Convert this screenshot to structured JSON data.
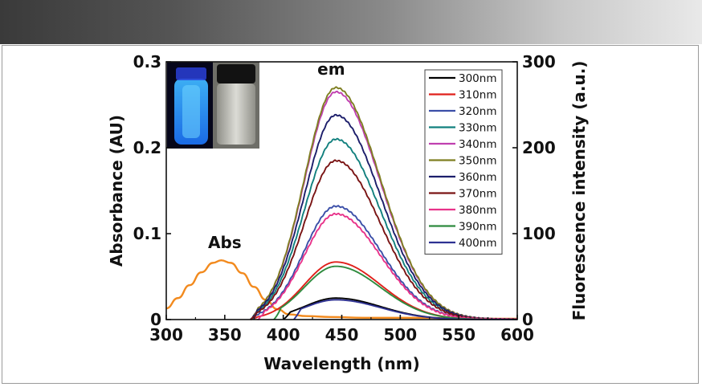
{
  "chart_data": {
    "type": "line",
    "title": "",
    "xlabel": "Wavelength (nm)",
    "ylabel_left": "Absorbance (AU)",
    "ylabel_right": "Fluorescence intensity (a.u.)",
    "xlim": [
      300,
      600
    ],
    "ylim_left": [
      0,
      0.3
    ],
    "ylim_right": [
      0,
      300
    ],
    "x_ticks": [
      "300",
      "350",
      "400",
      "450",
      "500",
      "550",
      "600"
    ],
    "y_left_ticks": [
      "0",
      "0.1",
      "0.2",
      "0.3"
    ],
    "y_right_ticks": [
      "0",
      "100",
      "200",
      "300"
    ],
    "grid": false,
    "legend_position": "top-right",
    "annotations": [
      {
        "text": "Abs",
        "x": 350,
        "y": 0.083
      },
      {
        "text": "em",
        "x": 441,
        "y": 0.285
      }
    ],
    "absorbance": {
      "name": "Abs",
      "axis": "left",
      "color": "#F28A1E",
      "x": [
        300,
        310,
        320,
        330,
        340,
        347,
        355,
        365,
        375,
        385,
        395,
        405,
        420,
        440,
        470,
        520,
        560,
        600
      ],
      "values": [
        0.013,
        0.025,
        0.04,
        0.055,
        0.066,
        0.069,
        0.066,
        0.054,
        0.038,
        0.023,
        0.012,
        0.006,
        0.004,
        0.003,
        0.002,
        0.002,
        0.001,
        0.001
      ]
    },
    "emission_peak_nm": 445,
    "emission_series": [
      {
        "name": "300nm",
        "color": "#000000",
        "peak": 25,
        "start": 400
      },
      {
        "name": "310nm",
        "color": "#E0201B",
        "peak": 67,
        "start": 372
      },
      {
        "name": "320nm",
        "color": "#3B4FA8",
        "peak": 132,
        "start": 372
      },
      {
        "name": "330nm",
        "color": "#12807E",
        "peak": 210,
        "start": 372
      },
      {
        "name": "340nm",
        "color": "#C040B0",
        "peak": 265,
        "start": 372
      },
      {
        "name": "350nm",
        "color": "#7F7F22",
        "peak": 270,
        "start": 372
      },
      {
        "name": "360nm",
        "color": "#1C1E6B",
        "peak": 238,
        "start": 372
      },
      {
        "name": "370nm",
        "color": "#7A1414",
        "peak": 185,
        "start": 372
      },
      {
        "name": "380nm",
        "color": "#E8338A",
        "peak": 123,
        "start": 378
      },
      {
        "name": "390nm",
        "color": "#2E8B3E",
        "peak": 62,
        "start": 392
      },
      {
        "name": "400nm",
        "color": "#2E3192",
        "peak": 23,
        "start": 409
      }
    ]
  },
  "inset_photo": {
    "left_label": "vial under UV",
    "right_label": "vial under daylight"
  }
}
